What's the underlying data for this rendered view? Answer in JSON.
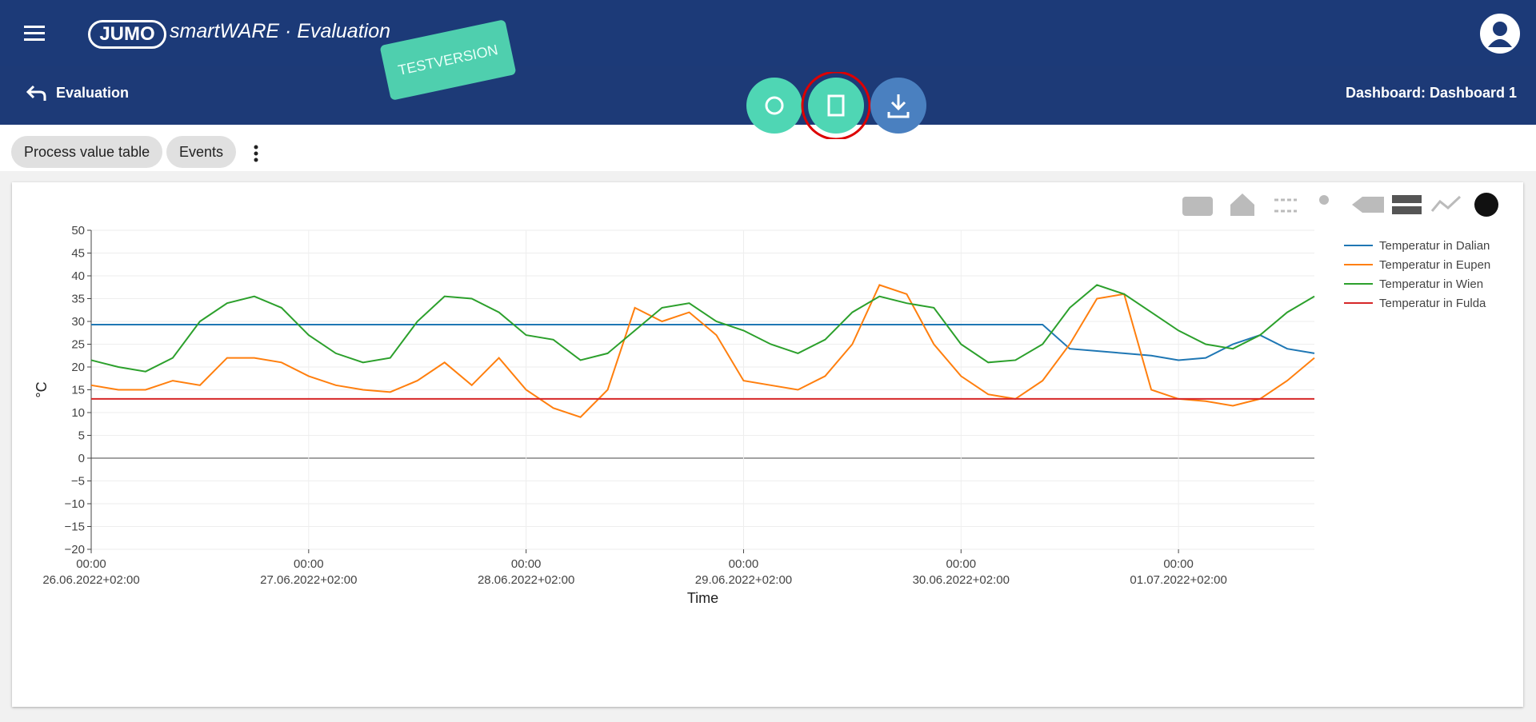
{
  "header": {
    "logo": "JUMO",
    "product": "smartWARE · Evaluation",
    "badge": "TESTVERSION"
  },
  "nav": {
    "back": "Evaluation",
    "dashboard": "Dashboard: Dashboard 1"
  },
  "tabs": [
    "Process value table",
    "Events"
  ],
  "chart_data": {
    "type": "line",
    "y_label": "°C",
    "x_label": "Time",
    "grid": true,
    "legend_position": "right",
    "x": [
      "26.06.2022 00:00",
      "26.06.2022 03:00",
      "26.06.2022 06:00",
      "26.06.2022 09:00",
      "26.06.2022 12:00",
      "26.06.2022 15:00",
      "26.06.2022 18:00",
      "26.06.2022 21:00",
      "27.06.2022 00:00",
      "27.06.2022 03:00",
      "27.06.2022 06:00",
      "27.06.2022 09:00",
      "27.06.2022 12:00",
      "27.06.2022 15:00",
      "27.06.2022 18:00",
      "27.06.2022 21:00",
      "28.06.2022 00:00",
      "28.06.2022 03:00",
      "28.06.2022 06:00",
      "28.06.2022 09:00",
      "28.06.2022 12:00",
      "28.06.2022 15:00",
      "28.06.2022 18:00",
      "28.06.2022 21:00",
      "29.06.2022 00:00",
      "29.06.2022 03:00",
      "29.06.2022 06:00",
      "29.06.2022 09:00",
      "29.06.2022 12:00",
      "29.06.2022 15:00",
      "29.06.2022 18:00",
      "29.06.2022 21:00",
      "30.06.2022 00:00",
      "30.06.2022 03:00",
      "30.06.2022 06:00",
      "30.06.2022 09:00",
      "30.06.2022 12:00",
      "30.06.2022 15:00",
      "30.06.2022 18:00",
      "30.06.2022 21:00",
      "01.07.2022 00:00",
      "01.07.2022 03:00",
      "01.07.2022 06:00",
      "01.07.2022 09:00",
      "01.07.2022 12:00",
      "01.07.2022 15:00"
    ],
    "series": [
      {
        "name": "Temperatur in Dalian",
        "color": "#1f77b4",
        "values": [
          29.3,
          29.3,
          29.3,
          29.3,
          29.3,
          29.3,
          29.3,
          29.3,
          29.3,
          29.3,
          29.3,
          29.3,
          29.3,
          29.3,
          29.3,
          29.3,
          29.3,
          29.3,
          29.3,
          29.3,
          29.3,
          29.3,
          29.3,
          29.3,
          29.3,
          29.3,
          29.3,
          29.3,
          29.3,
          29.3,
          29.3,
          29.3,
          29.3,
          29.3,
          29.3,
          29.3,
          24,
          23.5,
          23,
          22.5,
          21.5,
          22,
          25,
          27,
          24,
          23
        ]
      },
      {
        "name": "Temperatur in Eupen",
        "color": "#ff7f0e",
        "values": [
          16,
          15,
          15,
          17,
          16,
          22,
          22,
          21,
          18,
          16,
          15,
          14.5,
          17,
          21,
          16,
          22,
          15,
          11,
          9,
          15,
          33,
          30,
          32,
          27,
          17,
          16,
          15,
          18,
          25,
          38,
          36,
          25,
          18,
          14,
          13,
          17,
          25,
          35,
          36,
          15,
          13,
          12.5,
          11.5,
          13,
          17,
          22
        ]
      },
      {
        "name": "Temperatur in Wien",
        "color": "#2ca02c",
        "values": [
          21.5,
          20,
          19,
          22,
          30,
          34,
          35.5,
          33,
          27,
          23,
          21,
          22,
          30,
          35.5,
          35,
          32,
          27,
          26,
          21.5,
          23,
          28,
          33,
          34,
          30,
          28,
          25,
          23,
          26,
          32,
          35.5,
          34,
          33,
          25,
          21,
          21.5,
          25,
          33,
          38,
          36,
          32,
          28,
          25,
          24,
          27,
          32,
          35.5
        ]
      },
      {
        "name": "Temperatur in Fulda",
        "color": "#d62728",
        "values": [
          13,
          13,
          13,
          13,
          13,
          13,
          13,
          13,
          13,
          13,
          13,
          13,
          13,
          13,
          13,
          13,
          13,
          13,
          13,
          13,
          13,
          13,
          13,
          13,
          13,
          13,
          13,
          13,
          13,
          13,
          13,
          13,
          13,
          13,
          13,
          13,
          13,
          13,
          13,
          13,
          13,
          13,
          13,
          13,
          13,
          13
        ]
      }
    ],
    "xlim": [
      "26.06.2022 00:00",
      "01.07.2022 15:00"
    ],
    "xticks": [
      {
        "value": "26.06.2022 00:00",
        "label": "00:00\n26.06.2022+02:00"
      },
      {
        "value": "27.06.2022 00:00",
        "label": "00:00\n27.06.2022+02:00"
      },
      {
        "value": "28.06.2022 00:00",
        "label": "00:00\n28.06.2022+02:00"
      },
      {
        "value": "29.06.2022 00:00",
        "label": "00:00\n29.06.2022+02:00"
      },
      {
        "value": "30.06.2022 00:00",
        "label": "00:00\n30.06.2022+02:00"
      },
      {
        "value": "01.07.2022 00:00",
        "label": "00:00\n01.07.2022+02:00"
      }
    ],
    "ylim": [
      -20,
      50
    ],
    "yticks": [
      {
        "value": -20,
        "label": "−20"
      },
      {
        "value": -15,
        "label": "−15"
      },
      {
        "value": -10,
        "label": "−10"
      },
      {
        "value": -5,
        "label": "−5"
      },
      0,
      5,
      10,
      15,
      20,
      25,
      30,
      35,
      40,
      45,
      50
    ]
  }
}
